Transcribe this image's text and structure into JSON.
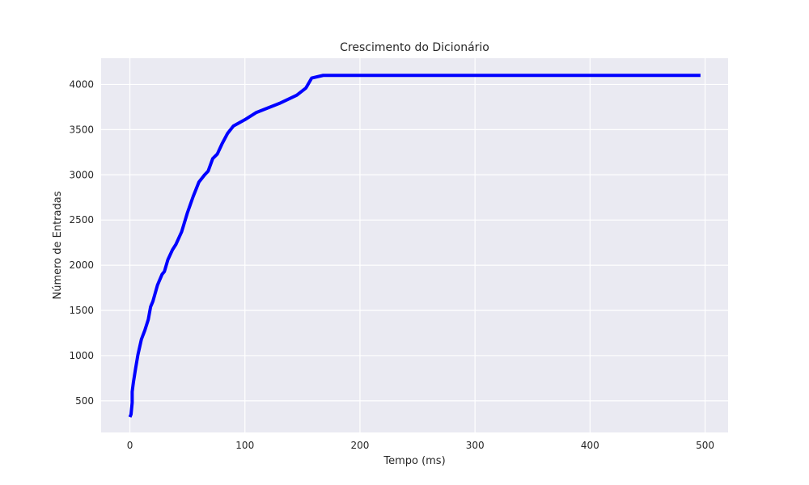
{
  "chart_data": {
    "type": "line",
    "title": "Crescimento do Dicionário",
    "xlabel": "Tempo (ms)",
    "ylabel": "Número de Entradas",
    "xlim": [
      -25,
      520
    ],
    "ylim": [
      150,
      4290
    ],
    "x_ticks": [
      0,
      100,
      200,
      300,
      400,
      500
    ],
    "y_ticks": [
      500,
      1000,
      1500,
      2000,
      2500,
      3000,
      3500,
      4000
    ],
    "grid": true,
    "legend": "none",
    "colors": {
      "background": "#EAEAF2",
      "grid": "#FFFFFF",
      "line": "#0000FF",
      "text": "#262626"
    },
    "series": [
      {
        "x": [
          0,
          1,
          2,
          2,
          3,
          5,
          7,
          10,
          13,
          16,
          18,
          20,
          24,
          28,
          30,
          33,
          37,
          40,
          45,
          50,
          55,
          60,
          65,
          68,
          72,
          76,
          80,
          85,
          90,
          100,
          110,
          120,
          130,
          145,
          153,
          158,
          168,
          180,
          200,
          300,
          400,
          496
        ],
        "values": [
          320,
          350,
          480,
          600,
          700,
          860,
          1010,
          1180,
          1280,
          1400,
          1540,
          1600,
          1780,
          1900,
          1930,
          2060,
          2170,
          2230,
          2370,
          2580,
          2760,
          2920,
          3000,
          3040,
          3180,
          3230,
          3340,
          3460,
          3540,
          3610,
          3690,
          3740,
          3790,
          3880,
          3960,
          4070,
          4100,
          4100,
          4100,
          4100,
          4100,
          4100
        ]
      }
    ]
  }
}
